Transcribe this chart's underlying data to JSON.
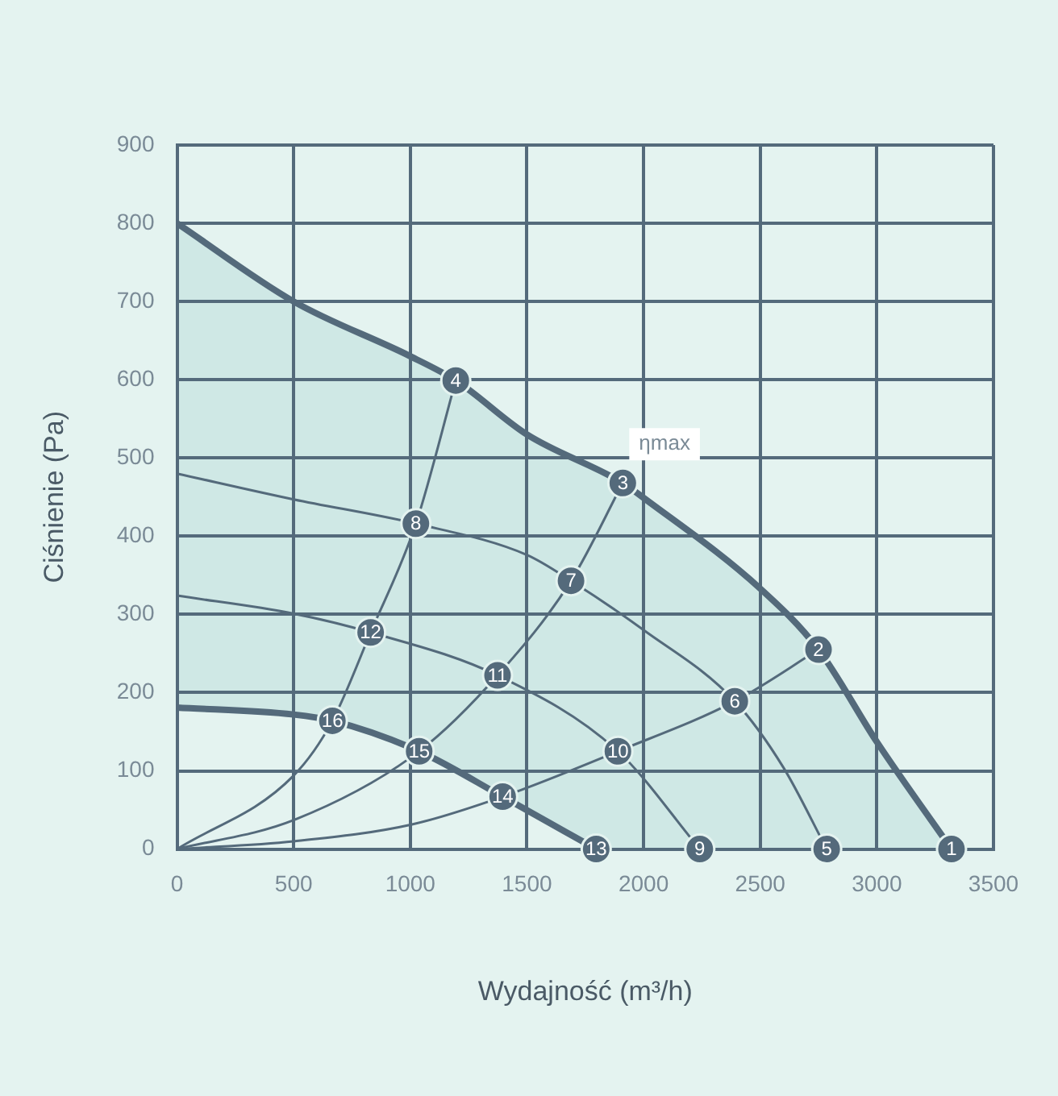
{
  "chart_data": {
    "type": "line",
    "xlabel": "Wydajność (m³/h)",
    "ylabel": "Ciśnienie (Pa)",
    "xlim": [
      0,
      3500
    ],
    "xticks": [
      0,
      500,
      1000,
      1500,
      2000,
      2500,
      3000,
      3500
    ],
    "ylim": [
      0,
      900
    ],
    "yticks": [
      0,
      100,
      200,
      300,
      400,
      500,
      600,
      700,
      800,
      900
    ],
    "grid": true,
    "legend": false,
    "marker": "none",
    "line_style": "solid",
    "annotations": [
      {
        "text": "ηmax",
        "x": 1911,
        "y": 468
      },
      {
        "text": "1",
        "x": 3320,
        "y": 0
      },
      {
        "text": "2",
        "x": 2750,
        "y": 255
      },
      {
        "text": "3",
        "x": 1911,
        "y": 468
      },
      {
        "text": "4",
        "x": 1195,
        "y": 599
      },
      {
        "text": "5",
        "x": 2785,
        "y": 0
      },
      {
        "text": "6",
        "x": 2391,
        "y": 189
      },
      {
        "text": "7",
        "x": 1689,
        "y": 343
      },
      {
        "text": "8",
        "x": 1024,
        "y": 416
      },
      {
        "text": "9",
        "x": 2241,
        "y": 0
      },
      {
        "text": "10",
        "x": 1890,
        "y": 125
      },
      {
        "text": "11",
        "x": 1374,
        "y": 222
      },
      {
        "text": "12",
        "x": 830,
        "y": 277
      },
      {
        "text": "13",
        "x": 1797,
        "y": 0
      },
      {
        "text": "14",
        "x": 1396,
        "y": 67
      },
      {
        "text": "15",
        "x": 1038,
        "y": 125
      },
      {
        "text": "16",
        "x": 666,
        "y": 164
      }
    ],
    "series": [
      {
        "type": "area",
        "color": "#546a7b",
        "x": [
          0,
          500,
          1000,
          1195,
          1500,
          1911,
          2000,
          2500,
          2750,
          3000,
          3320
        ],
        "values": [
          800,
          700,
          630,
          599,
          530,
          468,
          449,
          333,
          255,
          137,
          0
        ]
      },
      {
        "type": "area",
        "color": "#546a7b",
        "x": [
          0,
          500,
          666,
          1038,
          1396,
          1797
        ],
        "values": [
          181,
          172,
          164,
          125,
          67,
          0
        ]
      },
      {
        "type": "line",
        "color": "#546a7b",
        "x": [
          0,
          500,
          1024,
          1500,
          1689,
          2000,
          2391,
          2600,
          2785
        ],
        "values": [
          480,
          447,
          416,
          376,
          343,
          280,
          189,
          104,
          0
        ]
      },
      {
        "type": "line",
        "color": "#546a7b",
        "x": [
          0,
          500,
          830,
          1374,
          1890,
          2241
        ],
        "values": [
          324,
          301,
          277,
          222,
          125,
          0
        ]
      },
      {
        "type": "line",
        "color": "#546a7b",
        "x": [
          0,
          500,
          666,
          830,
          1024,
          1195
        ],
        "values": [
          0,
          94,
          164,
          277,
          416,
          599
        ]
      },
      {
        "type": "line",
        "color": "#546a7b",
        "x": [
          0,
          500,
          1038,
          1374,
          1689,
          1911
        ],
        "values": [
          0,
          37,
          125,
          222,
          343,
          468
        ]
      },
      {
        "type": "line",
        "color": "#546a7b",
        "x": [
          0,
          500,
          1000,
          1396,
          1890,
          2391,
          2750
        ],
        "values": [
          0,
          10,
          31,
          67,
          125,
          189,
          255
        ]
      },
      {
        "type": "scatter",
        "marker": "circle",
        "color": "#546a7b",
        "x": [
          3320,
          2750,
          1911,
          1195,
          2785,
          2391,
          1689,
          1024,
          2241,
          1890,
          1374,
          830,
          1797,
          1396,
          1038,
          666
        ],
        "values": [
          0,
          255,
          468,
          599,
          0,
          189,
          343,
          416,
          0,
          125,
          222,
          277,
          0,
          67,
          125,
          164
        ]
      }
    ]
  }
}
